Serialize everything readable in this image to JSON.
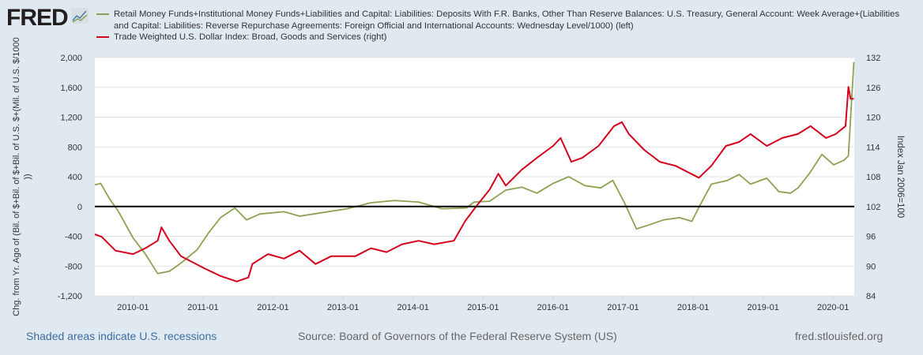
{
  "logo": "FRED",
  "colors": {
    "green": "#8ca252",
    "red": "#d6001c",
    "background": "#e1e9f0",
    "zero_line": "#000000"
  },
  "chart_data": {
    "type": "line",
    "title": "",
    "legend_position": "top",
    "grid": true,
    "x_ticks": [
      "2010-01",
      "2011-01",
      "2012-01",
      "2013-01",
      "2014-01",
      "2015-01",
      "2016-01",
      "2017-01",
      "2018-01",
      "2019-01",
      "2020-01"
    ],
    "xlim": [
      "2009-06-15",
      "2020-04-20"
    ],
    "left_axis": {
      "label": "Chg. from Yr. Ago of (Bil. of $+Bil. of $+Bil. of U.S. $+(Mil. of U.S. $/1000))",
      "ylim": [
        -1200,
        2000
      ],
      "ticks": [
        "2,000",
        "1,600",
        "1,200",
        "800",
        "400",
        "0",
        "-400",
        "-800",
        "-1,200"
      ]
    },
    "right_axis": {
      "label": "Index Jan 2006=100",
      "ylim": [
        84,
        132
      ],
      "ticks": [
        "132",
        "126",
        "120",
        "114",
        "108",
        "102",
        "96",
        "90",
        "84"
      ]
    },
    "series": [
      {
        "name": "Retail Money Funds+Institutional Money Funds+Liabilities and Capital: Liabilities: Deposits With F.R. Banks, Other Than Reserve Balances: U.S. Treasury, General Account: Week Average+(Liabilities and Capital: Liabilities: Reverse Repurchase Agreements: Foreign Official and International Accounts: Wednesday Level/1000) (left)",
        "axis": "left",
        "color": "#8ca252",
        "x": [
          "2009-06-15",
          "2009-07-15",
          "2009-09-01",
          "2009-10-15",
          "2010-01-01",
          "2010-03-05",
          "2010-05-08",
          "2010-07-08",
          "2010-09-08",
          "2010-12-01",
          "2011-02-01",
          "2011-04-01",
          "2011-06-15",
          "2011-08-15",
          "2011-10-25",
          "2012-02-28",
          "2012-05-18",
          "2012-09-20",
          "2013-01-22",
          "2013-05-25",
          "2013-09-25",
          "2014-01-30",
          "2014-06-01",
          "2014-10-05",
          "2014-11-15",
          "2015-02-05",
          "2015-04-28",
          "2015-07-20",
          "2015-10-08",
          "2016-01-01",
          "2016-03-22",
          "2016-06-15",
          "2016-09-05",
          "2016-11-08",
          "2017-01-08",
          "2017-03-10",
          "2017-05-12",
          "2017-07-30",
          "2017-10-22",
          "2017-12-25",
          "2018-02-03",
          "2018-04-05",
          "2018-06-28",
          "2018-08-28",
          "2018-10-27",
          "2019-01-20",
          "2019-03-22",
          "2019-05-22",
          "2019-07-01",
          "2019-09-01",
          "2019-11-03",
          "2020-01-04",
          "2020-02-27",
          "2020-03-20",
          "2020-04-18"
        ],
        "values": [
          290,
          310,
          100,
          -60,
          -420,
          -640,
          -900,
          -870,
          -760,
          -580,
          -350,
          -150,
          -20,
          -180,
          -100,
          -70,
          -130,
          -80,
          -30,
          50,
          80,
          60,
          -30,
          -20,
          60,
          70,
          220,
          260,
          180,
          310,
          400,
          280,
          250,
          350,
          50,
          -300,
          -250,
          -180,
          -150,
          -200,
          0,
          300,
          350,
          430,
          300,
          380,
          200,
          180,
          250,
          450,
          700,
          560,
          620,
          680,
          1940
        ]
      },
      {
        "name": "Trade Weighted U.S. Dollar Index: Broad, Goods and Services (right)",
        "axis": "right",
        "color": "#d6001c",
        "x": [
          "2009-06-15",
          "2009-07-20",
          "2009-10-01",
          "2010-01-01",
          "2010-03-05",
          "2010-05-08",
          "2010-05-28",
          "2010-07-08",
          "2010-09-08",
          "2011-01-10",
          "2011-04-01",
          "2011-06-25",
          "2011-08-25",
          "2011-09-15",
          "2011-12-05",
          "2012-02-28",
          "2012-05-18",
          "2012-08-10",
          "2012-11-01",
          "2013-03-05",
          "2013-05-25",
          "2013-08-15",
          "2013-11-05",
          "2014-01-30",
          "2014-04-20",
          "2014-08-01",
          "2014-09-30",
          "2014-12-01",
          "2015-02-05",
          "2015-03-20",
          "2015-04-28",
          "2015-07-20",
          "2015-10-08",
          "2016-01-01",
          "2016-02-10",
          "2016-04-05",
          "2016-06-01",
          "2016-08-25",
          "2016-11-15",
          "2016-12-25",
          "2017-02-01",
          "2017-04-20",
          "2017-07-10",
          "2017-10-01",
          "2017-12-20",
          "2018-02-01",
          "2018-04-05",
          "2018-06-20",
          "2018-08-28",
          "2018-10-27",
          "2019-01-20",
          "2019-04-10",
          "2019-06-30",
          "2019-09-05",
          "2019-11-25",
          "2020-01-15",
          "2020-03-05",
          "2020-03-20",
          "2020-04-01",
          "2020-04-18"
        ],
        "values": [
          96.4,
          95.9,
          93.1,
          92.4,
          93.6,
          95.1,
          97.8,
          95.1,
          92.0,
          89.5,
          88.0,
          86.9,
          87.7,
          90.4,
          92.4,
          91.5,
          93.1,
          90.4,
          92.0,
          92.0,
          93.6,
          92.8,
          94.4,
          95.1,
          94.4,
          95.1,
          99.1,
          102.3,
          105.4,
          108.6,
          106.2,
          109.4,
          111.8,
          114.2,
          115.8,
          111.0,
          111.8,
          114.2,
          118.2,
          119.0,
          116.6,
          113.4,
          111.0,
          110.2,
          108.6,
          107.8,
          110.2,
          114.2,
          115.0,
          116.6,
          114.2,
          115.8,
          116.6,
          118.2,
          115.8,
          116.6,
          118.2,
          126.1,
          123.7,
          123.7
        ]
      }
    ]
  },
  "footer": {
    "recessions": "Shaded areas indicate U.S. recessions",
    "source": "Source: Board of Governors of the Federal Reserve System (US)",
    "site": "fred.stlouisfed.org"
  }
}
